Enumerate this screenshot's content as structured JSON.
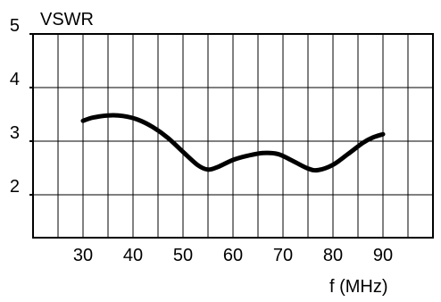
{
  "chart_data": {
    "type": "line",
    "title": "",
    "xlabel": "f (MHz)",
    "ylabel": "VSWR",
    "xlim": [
      20,
      100
    ],
    "ylim": [
      1.2,
      5
    ],
    "x_ticks": [
      "30",
      "40",
      "50",
      "60",
      "70",
      "80",
      "90"
    ],
    "y_ticks": [
      "5",
      "4",
      "3",
      "2"
    ],
    "grid": true,
    "series": [
      {
        "x": [
          30,
          32,
          35,
          38,
          41,
          44,
          47,
          50,
          53,
          55,
          57,
          60,
          63,
          66,
          69,
          72,
          75,
          77,
          80,
          83,
          86,
          88,
          90
        ],
        "values": [
          3.38,
          3.44,
          3.48,
          3.47,
          3.4,
          3.26,
          3.06,
          2.8,
          2.55,
          2.47,
          2.52,
          2.65,
          2.73,
          2.78,
          2.76,
          2.63,
          2.49,
          2.46,
          2.56,
          2.76,
          2.97,
          3.07,
          3.13
        ]
      }
    ]
  }
}
